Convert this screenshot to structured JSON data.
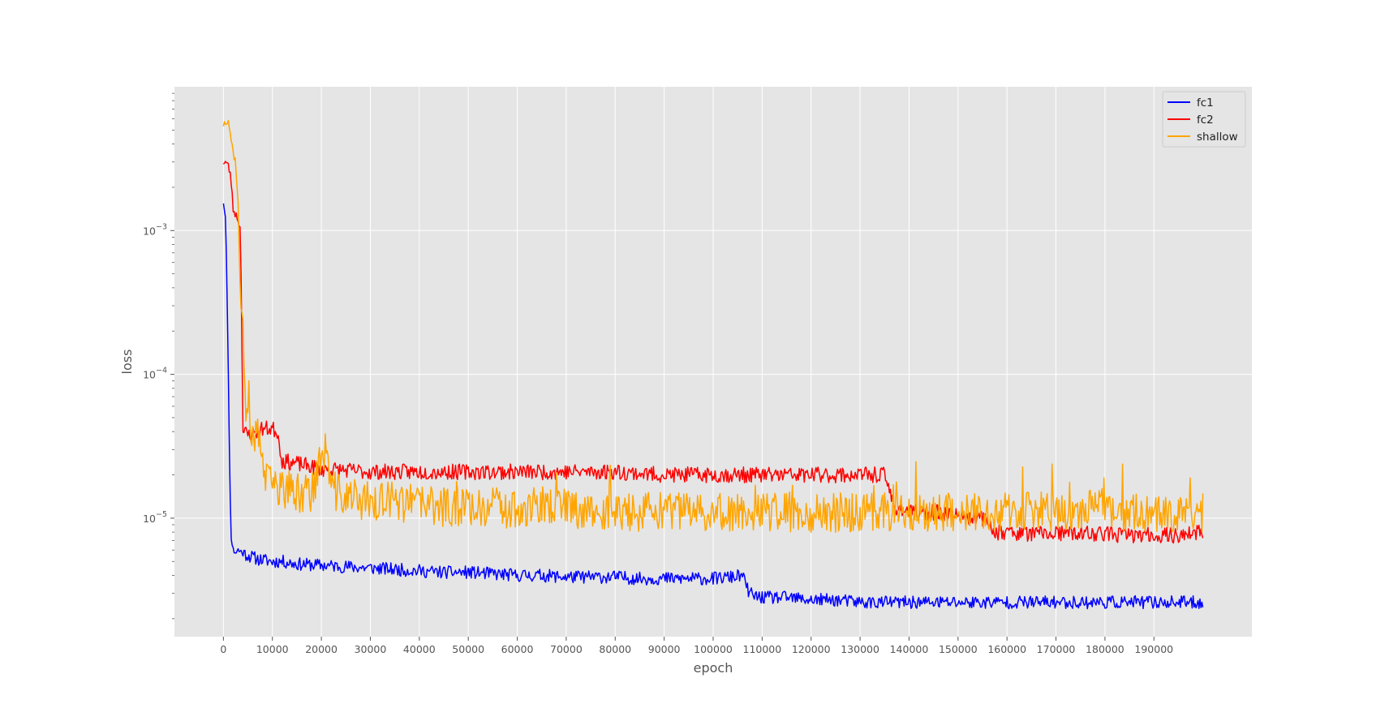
{
  "chart_data": {
    "type": "line",
    "title": "",
    "xlabel": "epoch",
    "ylabel": "loss",
    "yscale": "log",
    "xlim": [
      -10000,
      210000
    ],
    "ylim": [
      1.5e-06,
      0.01
    ],
    "xticks": [
      0,
      10000,
      20000,
      30000,
      40000,
      50000,
      60000,
      70000,
      80000,
      90000,
      100000,
      110000,
      120000,
      130000,
      140000,
      150000,
      160000,
      170000,
      180000,
      190000
    ],
    "yticks_major": [
      {
        "value": 1e-05,
        "base": "10",
        "exp": "−5"
      },
      {
        "value": 0.0001,
        "base": "10",
        "exp": "−4"
      },
      {
        "value": 0.001,
        "base": "10",
        "exp": "−3"
      }
    ],
    "grid": true,
    "legend_position": "top-right",
    "background_color": "#e5e5e5",
    "grid_color": "#ffffff",
    "series": [
      {
        "name": "fc1",
        "color": "#0000ff",
        "x": [
          0,
          500,
          1000,
          1500,
          2000,
          2500,
          3000,
          5000,
          7000,
          10000,
          12000,
          15000,
          20000,
          25000,
          30000,
          35000,
          40000,
          45000,
          50000,
          55000,
          60000,
          65000,
          70000,
          75000,
          80000,
          85000,
          90000,
          95000,
          100000,
          104000,
          106000,
          107000,
          108000,
          110000,
          115000,
          120000,
          125000,
          130000,
          135000,
          140000,
          145000,
          150000,
          155000,
          160000,
          165000,
          170000,
          175000,
          180000,
          185000,
          190000,
          195000,
          200000
        ],
        "y": [
          0.0016,
          0.0012,
          0.0001,
          8e-06,
          6e-06,
          5.8e-06,
          6e-06,
          5.5e-06,
          5.2e-06,
          5e-06,
          5e-06,
          4.8e-06,
          4.7e-06,
          4.6e-06,
          4.5e-06,
          4.4e-06,
          4.3e-06,
          4.2e-06,
          4.2e-06,
          4.1e-06,
          4e-06,
          4e-06,
          3.9e-06,
          3.9e-06,
          3.9e-06,
          3.8e-06,
          3.8e-06,
          3.8e-06,
          3.8e-06,
          3.9e-06,
          4e-06,
          3.2e-06,
          2.9e-06,
          2.8e-06,
          2.8e-06,
          2.7e-06,
          2.7e-06,
          2.6e-06,
          2.6e-06,
          2.6e-06,
          2.6e-06,
          2.6e-06,
          2.6e-06,
          2.6e-06,
          2.6e-06,
          2.6e-06,
          2.6e-06,
          2.6e-06,
          2.6e-06,
          2.6e-06,
          2.6e-06,
          2.6e-06
        ]
      },
      {
        "name": "fc2",
        "color": "#ff0000",
        "x": [
          0,
          500,
          1000,
          1500,
          2000,
          2500,
          3000,
          3500,
          4000,
          5000,
          7000,
          8000,
          10000,
          11000,
          12000,
          15000,
          20000,
          30000,
          40000,
          50000,
          60000,
          70000,
          80000,
          90000,
          100000,
          110000,
          120000,
          130000,
          135000,
          137000,
          140000,
          145000,
          150000,
          155000,
          158000,
          160000,
          165000,
          170000,
          175000,
          180000,
          185000,
          190000,
          195000,
          200000
        ],
        "y": [
          0.003,
          0.003,
          0.0028,
          0.0024,
          0.0014,
          0.0013,
          0.0012,
          0.001,
          4e-05,
          3.8e-05,
          4e-05,
          4.2e-05,
          4.2e-05,
          4e-05,
          2.5e-05,
          2.4e-05,
          2.2e-05,
          2.1e-05,
          2.1e-05,
          2.1e-05,
          2.1e-05,
          2.1e-05,
          2.1e-05,
          2e-05,
          2e-05,
          2e-05,
          2e-05,
          2e-05,
          2e-05,
          1.2e-05,
          1.1e-05,
          1.1e-05,
          1.05e-05,
          1e-05,
          8e-06,
          8e-06,
          7.8e-06,
          7.8e-06,
          7.8e-06,
          7.8e-06,
          7.6e-06,
          7.6e-06,
          7.6e-06,
          8e-06
        ]
      },
      {
        "name": "shallow",
        "color": "#ffa500",
        "x": [
          0,
          500,
          1000,
          1500,
          2000,
          2500,
          3000,
          3500,
          4000,
          4500,
          5000,
          6000,
          7000,
          8000,
          8500,
          10000,
          12000,
          15000,
          18000,
          20000,
          21000,
          22000,
          25000,
          30000,
          35000,
          40000,
          45000,
          50000,
          55000,
          60000,
          65000,
          70000,
          75000,
          80000,
          85000,
          90000,
          95000,
          100000,
          105000,
          110000,
          115000,
          120000,
          125000,
          130000,
          135000,
          140000,
          145000,
          150000,
          155000,
          160000,
          165000,
          170000,
          175000,
          180000,
          182000,
          185000,
          190000,
          195000,
          199000,
          200000
        ],
        "y": [
          0.0055,
          0.0058,
          0.006,
          0.0045,
          0.0035,
          0.003,
          0.0015,
          0.0003,
          0.00025,
          4.5e-05,
          4e-05,
          3.8e-05,
          3.6e-05,
          2.8e-05,
          1.8e-05,
          1.7e-05,
          1.6e-05,
          1.5e-05,
          1.5e-05,
          2.6e-05,
          3e-05,
          1.6e-05,
          1.4e-05,
          1.3e-05,
          1.3e-05,
          1.25e-05,
          1.2e-05,
          1.2e-05,
          1.2e-05,
          1.15e-05,
          1.2e-05,
          1.2e-05,
          1.1e-05,
          1.1e-05,
          1.1e-05,
          1.1e-05,
          1.1e-05,
          1.1e-05,
          1.1e-05,
          1.1e-05,
          1.1e-05,
          1.1e-05,
          1.1e-05,
          1.1e-05,
          1.1e-05,
          1.1e-05,
          1.1e-05,
          1.1e-05,
          1.1e-05,
          1.1e-05,
          1.1e-05,
          1.1e-05,
          1.1e-05,
          1.2e-05,
          1.1e-05,
          1.1e-05,
          1.1e-05,
          1.1e-05,
          1.1e-05,
          1.1e-05
        ]
      }
    ]
  }
}
